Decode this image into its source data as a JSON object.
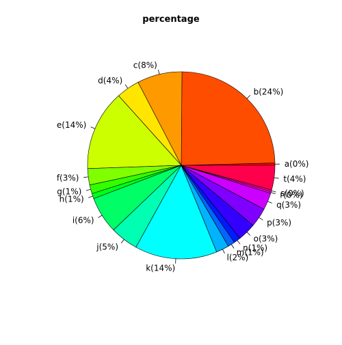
{
  "chart_data": {
    "type": "pie",
    "title": "percentage",
    "direction": "counterclockwise",
    "start": "3 o'clock",
    "slices": [
      {
        "name": "a",
        "label": "a(0%)",
        "value": 0.4,
        "color": "#FF0000"
      },
      {
        "name": "b",
        "label": "b(24%)",
        "value": 24.3,
        "color": "#FF4D00"
      },
      {
        "name": "c",
        "label": "c(8%)",
        "value": 7.7,
        "color": "#FF9900"
      },
      {
        "name": "d",
        "label": "d(4%)",
        "value": 4.0,
        "color": "#FFE500"
      },
      {
        "name": "e",
        "label": "e(14%)",
        "value": 13.8,
        "color": "#CCFF00"
      },
      {
        "name": "f",
        "label": "f(3%)",
        "value": 2.8,
        "color": "#80FF00"
      },
      {
        "name": "g",
        "label": "g(1%)",
        "value": 1.5,
        "color": "#33FF00"
      },
      {
        "name": "h",
        "label": "h(1%)",
        "value": 0.9,
        "color": "#00FF1A"
      },
      {
        "name": "i",
        "label": "i(6%)",
        "value": 6.3,
        "color": "#00FF66"
      },
      {
        "name": "j",
        "label": "j(5%)",
        "value": 4.8,
        "color": "#00FFB2"
      },
      {
        "name": "k",
        "label": "k(14%)",
        "value": 14.1,
        "color": "#00FFFF"
      },
      {
        "name": "l",
        "label": "l(2%)",
        "value": 2.2,
        "color": "#00B3FF"
      },
      {
        "name": "m",
        "label": "m(1%)",
        "value": 1.2,
        "color": "#0066FF"
      },
      {
        "name": "n",
        "label": "n(1%)",
        "value": 1.2,
        "color": "#001AFF"
      },
      {
        "name": "o",
        "label": "o(3%)",
        "value": 3.1,
        "color": "#3300FF"
      },
      {
        "name": "p",
        "label": "p(3%)",
        "value": 3.3,
        "color": "#8000FF"
      },
      {
        "name": "q",
        "label": "q(3%)",
        "value": 2.9,
        "color": "#CC00FF"
      },
      {
        "name": "r",
        "label": "r(0%)",
        "value": 0.3,
        "color": "#FF00E6"
      },
      {
        "name": "s",
        "label": "s(0%)",
        "value": 0.3,
        "color": "#FF0099"
      },
      {
        "name": "t",
        "label": "t(4%)",
        "value": 4.2,
        "color": "#FF004D"
      }
    ]
  }
}
